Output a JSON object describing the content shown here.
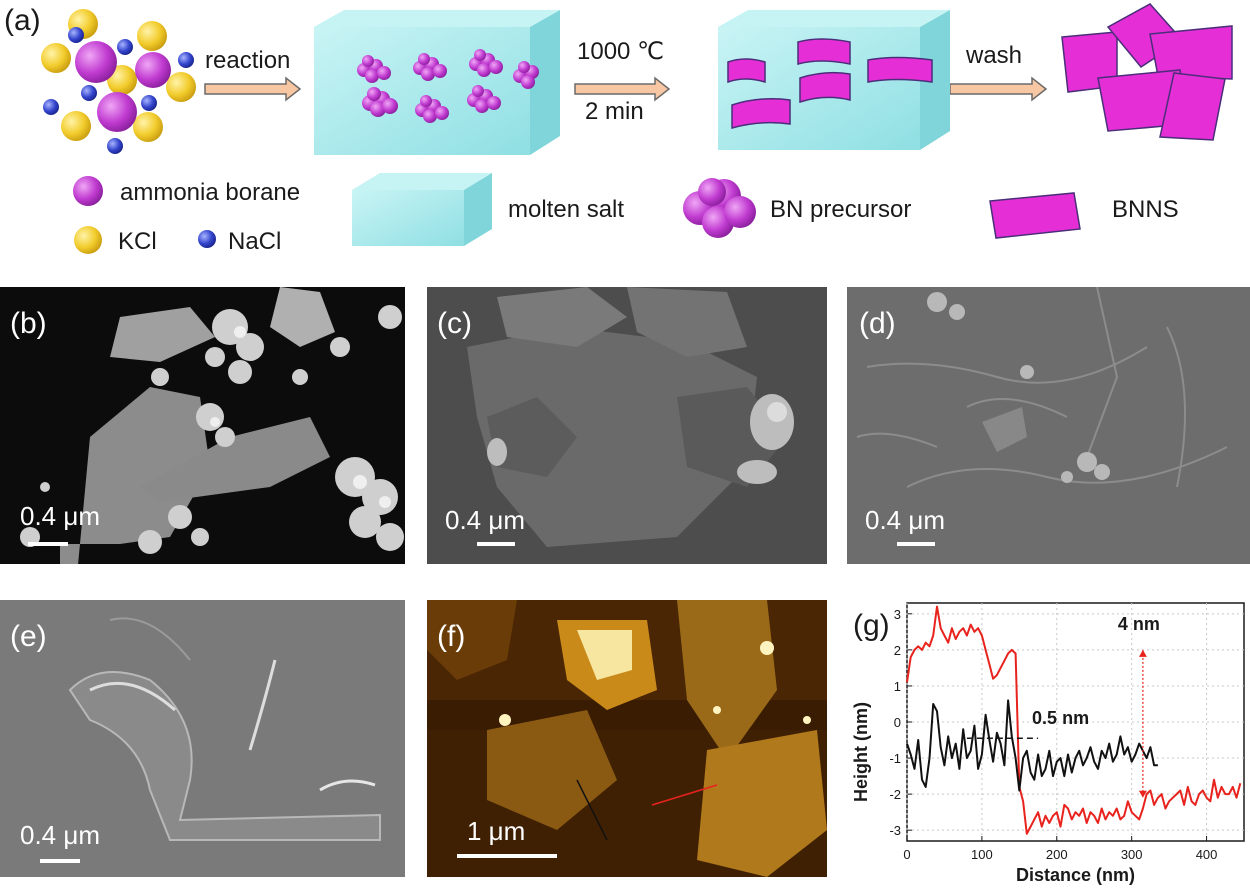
{
  "figure": {
    "panel_a": {
      "label": "(a)",
      "steps": [
        {
          "label": "reaction"
        },
        {
          "label_line1": "1000 ℃",
          "label_line2": "2 min"
        },
        {
          "label": "wash"
        }
      ],
      "legend": {
        "ammonia_borane": "ammonia borane",
        "kcl": "KCl",
        "nacl": "NaCl",
        "molten_salt": "molten salt",
        "bn_precursor": "BN precursor",
        "bnns": "BNNS"
      },
      "colors": {
        "ammonia_borane": "#c03bd0",
        "kcl": "#f2cc2c",
        "nacl": "#3344cc",
        "molten_salt": "#9fe7ea",
        "bnns": "#e62ed6",
        "arrow": "#f6c7a2"
      }
    },
    "panel_b": {
      "label": "(b)",
      "scale": "0.4 μm"
    },
    "panel_c": {
      "label": "(c)",
      "scale": "0.4 μm"
    },
    "panel_d": {
      "label": "(d)",
      "scale": "0.4 μm"
    },
    "panel_e": {
      "label": "(e)",
      "scale": "0.4 μm"
    },
    "panel_f": {
      "label": "(f)",
      "scale": "1 μm"
    },
    "panel_g": {
      "label": "(g)",
      "annotation_4nm": "4 nm",
      "annotation_05nm": "0.5 nm"
    }
  },
  "chart_data": {
    "type": "line",
    "xlabel": "Distance (nm)",
    "ylabel": "Height (nm)",
    "xlim": [
      0,
      450
    ],
    "ylim": [
      -3.3,
      3.3
    ],
    "xticks": [
      "0",
      "100",
      "200",
      "300",
      "400"
    ],
    "yticks": [
      "3",
      "2",
      "1",
      "0",
      "-1",
      "-2",
      "-3"
    ],
    "grid": true,
    "series": [
      {
        "color": "#e8231e",
        "x": [
          0,
          5,
          10,
          15,
          20,
          25,
          30,
          35,
          40,
          45,
          50,
          55,
          60,
          65,
          70,
          75,
          80,
          85,
          90,
          95,
          100,
          105,
          110,
          115,
          120,
          125,
          130,
          135,
          140,
          145,
          150,
          155,
          160,
          165,
          170,
          175,
          180,
          185,
          190,
          195,
          200,
          205,
          210,
          215,
          220,
          225,
          230,
          235,
          240,
          245,
          250,
          255,
          260,
          265,
          270,
          275,
          280,
          285,
          290,
          295,
          300,
          305,
          310,
          315,
          320,
          325,
          330,
          335,
          340,
          345,
          350,
          355,
          360,
          365,
          370,
          375,
          380,
          385,
          390,
          395,
          400,
          405,
          410,
          415,
          420,
          425,
          430,
          435,
          440,
          445
        ],
        "y": [
          1.1,
          1.8,
          2.0,
          2.1,
          2.0,
          2.2,
          2.1,
          2.4,
          3.2,
          2.6,
          2.4,
          2.2,
          2.6,
          2.3,
          2.5,
          2.6,
          2.4,
          2.7,
          2.5,
          2.6,
          2.4,
          2.0,
          1.6,
          1.2,
          1.3,
          1.5,
          1.7,
          1.9,
          2.0,
          1.9,
          -1.8,
          -2.2,
          -3.1,
          -2.9,
          -2.7,
          -2.5,
          -2.9,
          -2.6,
          -2.8,
          -2.6,
          -2.5,
          -2.9,
          -2.3,
          -2.4,
          -2.7,
          -2.5,
          -2.6,
          -2.4,
          -2.8,
          -2.5,
          -2.6,
          -2.8,
          -2.4,
          -2.7,
          -2.5,
          -2.6,
          -2.4,
          -2.7,
          -2.6,
          -2.2,
          -2.5,
          -2.6,
          -2.7,
          -2.4,
          -2.0,
          -1.9,
          -2.3,
          -2.1,
          -2.0,
          -2.4,
          -2.2,
          -2.1,
          -2.0,
          -1.9,
          -2.3,
          -1.8,
          -2.2,
          -2.3,
          -2.0,
          -1.9,
          -2.1,
          -2.2,
          -1.6,
          -2.1,
          -1.8,
          -2.0,
          -2.0,
          -1.8,
          -2.1,
          -1.7
        ]
      },
      {
        "color": "#111111",
        "x": [
          0,
          5,
          10,
          15,
          20,
          25,
          30,
          35,
          40,
          45,
          50,
          55,
          60,
          65,
          70,
          75,
          80,
          85,
          90,
          95,
          100,
          105,
          110,
          115,
          120,
          125,
          130,
          135,
          140,
          145,
          150,
          155,
          160,
          165,
          170,
          175,
          180,
          185,
          190,
          195,
          200,
          205,
          210,
          215,
          220,
          225,
          230,
          235,
          240,
          245,
          250,
          255,
          260,
          265,
          270,
          275,
          280,
          285,
          290,
          295,
          300,
          305,
          310,
          315,
          320,
          325,
          330,
          335
        ],
        "y": [
          -0.6,
          -0.9,
          -1.3,
          -0.5,
          -1.6,
          -1.8,
          -1.0,
          0.5,
          0.3,
          -0.7,
          -1.2,
          -0.4,
          -1.0,
          -0.6,
          -1.3,
          -0.2,
          -1.0,
          -0.8,
          -0.1,
          -1.3,
          -0.9,
          0.2,
          -0.5,
          -1.1,
          -0.3,
          -0.6,
          -1.2,
          0.6,
          -0.4,
          -1.0,
          -1.9,
          -1.0,
          -0.8,
          -1.4,
          -1.6,
          -0.9,
          -1.5,
          -1.3,
          -0.8,
          -1.5,
          -1.1,
          -1.0,
          -1.5,
          -0.9,
          -1.4,
          -1.0,
          -0.8,
          -1.2,
          -1.0,
          -0.7,
          -1.1,
          -1.3,
          -0.8,
          -1.0,
          -0.6,
          -1.1,
          -0.9,
          -0.4,
          -0.9,
          -0.7,
          -1.1,
          -0.9,
          -0.6,
          -0.8,
          -1.0,
          -0.7,
          -1.2,
          -1.2
        ]
      }
    ],
    "annotations": [
      {
        "text": "4 nm",
        "arrow_x": 315,
        "y_from": 2.0,
        "y_to": -2.1
      },
      {
        "text": "0.5 nm",
        "dashed_from_x": 80,
        "dashed_to_x": 175,
        "y": -0.45
      }
    ]
  }
}
